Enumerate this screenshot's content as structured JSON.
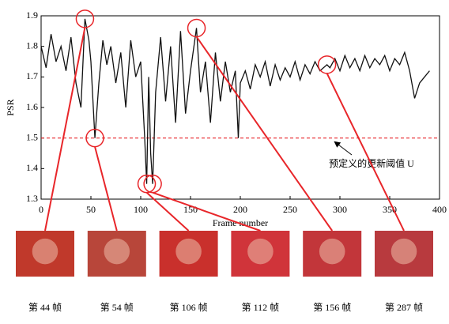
{
  "chart_data": {
    "type": "line",
    "x_label": "Frame number",
    "y_label": "PSR",
    "x": [
      0,
      5,
      10,
      15,
      20,
      25,
      30,
      35,
      40,
      44,
      48,
      50,
      54,
      58,
      62,
      66,
      70,
      75,
      80,
      85,
      90,
      95,
      100,
      104,
      106,
      108,
      110,
      112,
      115,
      120,
      125,
      130,
      135,
      140,
      145,
      150,
      156,
      160,
      165,
      170,
      175,
      180,
      185,
      190,
      195,
      198,
      200,
      205,
      210,
      215,
      220,
      225,
      230,
      235,
      240,
      245,
      250,
      255,
      260,
      265,
      270,
      275,
      280,
      287,
      290,
      295,
      300,
      305,
      310,
      315,
      320,
      325,
      330,
      335,
      340,
      345,
      350,
      355,
      360,
      365,
      370,
      375,
      380,
      385,
      390
    ],
    "values": [
      1.8,
      1.73,
      1.84,
      1.75,
      1.8,
      1.72,
      1.83,
      1.68,
      1.6,
      1.89,
      1.82,
      1.75,
      1.5,
      1.68,
      1.82,
      1.74,
      1.8,
      1.68,
      1.78,
      1.6,
      1.82,
      1.7,
      1.75,
      1.5,
      1.35,
      1.7,
      1.45,
      1.35,
      1.65,
      1.83,
      1.62,
      1.8,
      1.55,
      1.85,
      1.58,
      1.72,
      1.86,
      1.65,
      1.75,
      1.55,
      1.78,
      1.62,
      1.75,
      1.65,
      1.72,
      1.5,
      1.68,
      1.72,
      1.66,
      1.74,
      1.7,
      1.75,
      1.67,
      1.74,
      1.69,
      1.73,
      1.7,
      1.75,
      1.69,
      1.74,
      1.71,
      1.75,
      1.72,
      1.74,
      1.73,
      1.76,
      1.72,
      1.77,
      1.73,
      1.76,
      1.72,
      1.77,
      1.73,
      1.76,
      1.74,
      1.77,
      1.72,
      1.76,
      1.74,
      1.78,
      1.72,
      1.63,
      1.68,
      1.7,
      1.72
    ],
    "color": "#111111",
    "xlim": [
      0,
      400
    ],
    "xticks": [
      0,
      50,
      100,
      150,
      200,
      250,
      300,
      350,
      400
    ],
    "ylim": [
      1.3,
      1.9
    ],
    "yticks": [
      1.3,
      1.4,
      1.5,
      1.6,
      1.7,
      1.8,
      1.9
    ],
    "threshold": 1.5,
    "threshold_color": "#e8262a",
    "threshold_label": "预定义的更新阈值 U",
    "highlight_color": "#e8262a",
    "highlight_frames": [
      44,
      54,
      106,
      112,
      156,
      287
    ],
    "captions": [
      "第 44 帧",
      "第 54 帧",
      "第 106 帧",
      "第 112 帧",
      "第 156 帧",
      "第 287 帧"
    ]
  }
}
